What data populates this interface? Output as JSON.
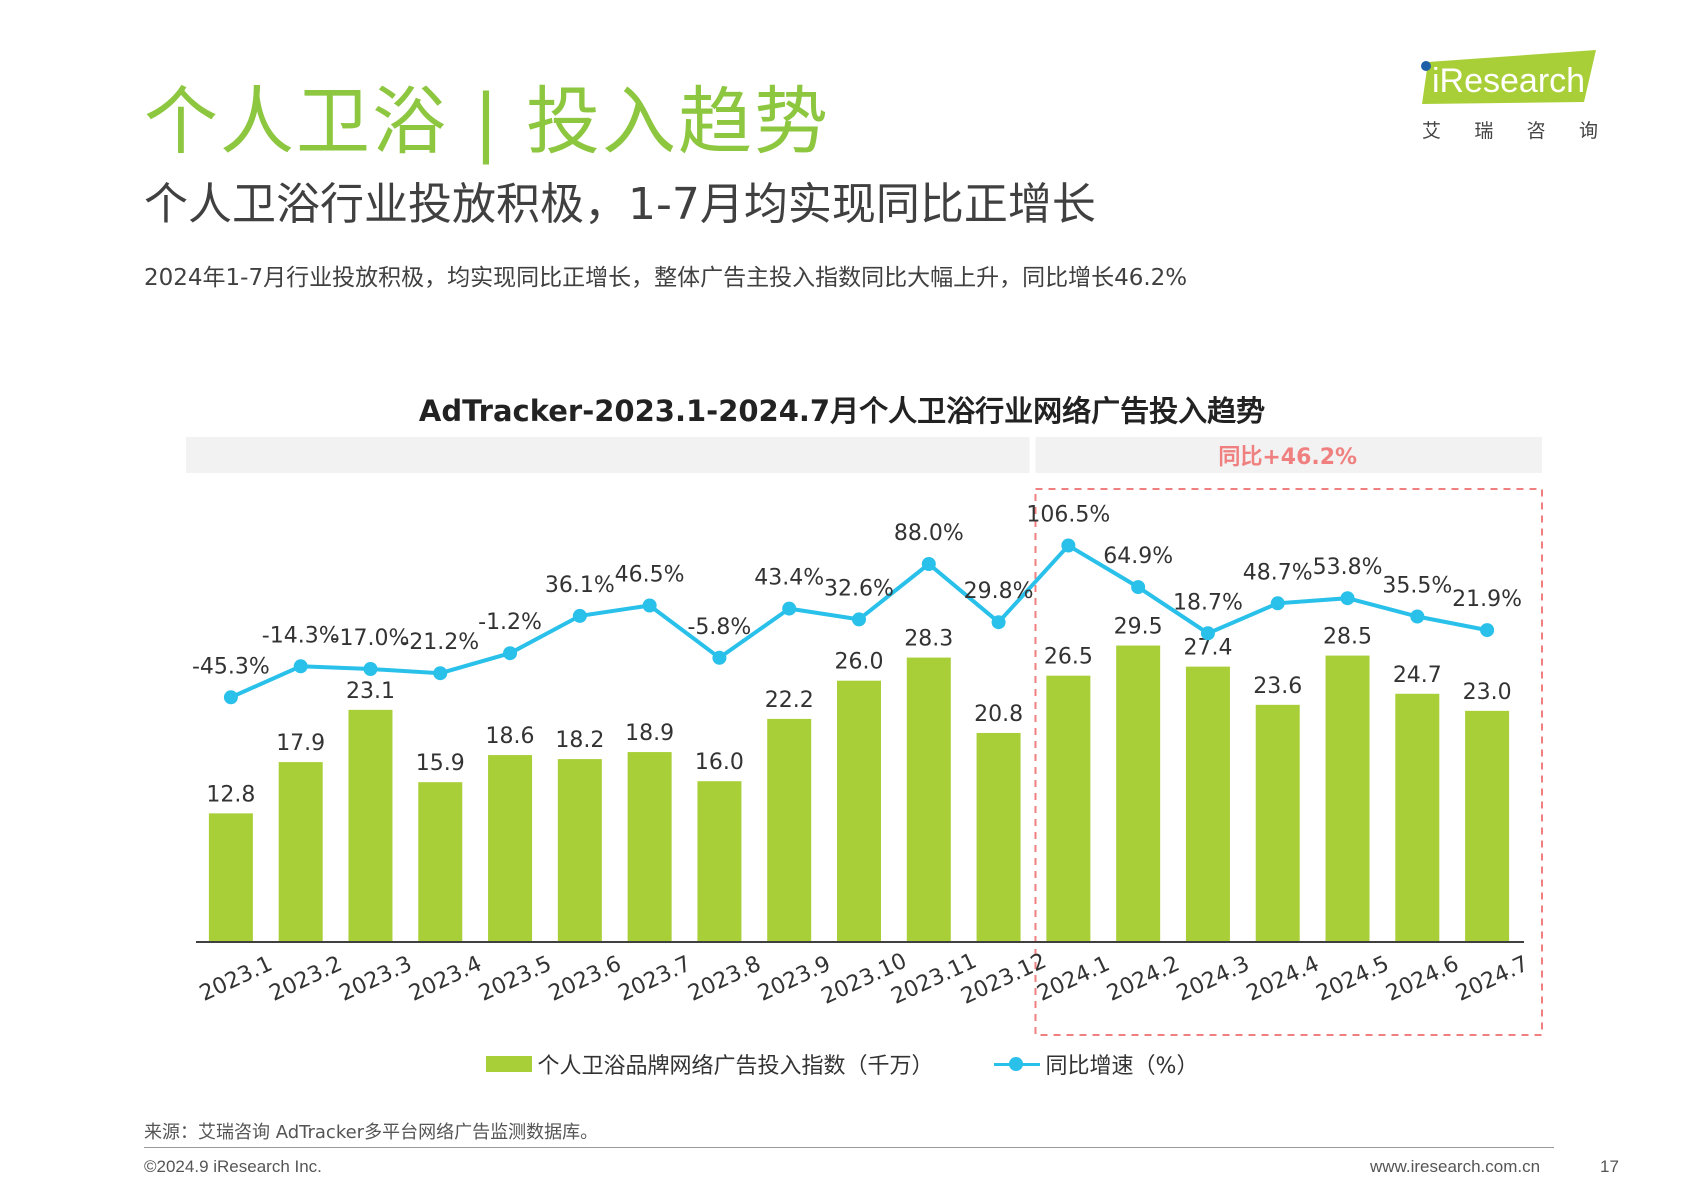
{
  "header": {
    "title": "个人卫浴 | 投入趋势",
    "subtitle": "个人卫浴行业投放积极，1-7月均实现同比正增长",
    "description": "2024年1-7月行业投放积极，均实现同比正增长，整体广告主投入指数同比大幅上升，同比增长46.2%"
  },
  "logo": {
    "word": "iResearch",
    "chars": [
      "艾",
      "瑞",
      "咨",
      "询"
    ]
  },
  "chart_data": {
    "type": "bar",
    "title": "AdTracker-2023.1-2024.7月个人卫浴行业网络广告投入趋势",
    "categories": [
      "2023.1",
      "2023.2",
      "2023.3",
      "2023.4",
      "2023.5",
      "2023.6",
      "2023.7",
      "2023.8",
      "2023.9",
      "2023.10",
      "2023.11",
      "2023.12",
      "2024.1",
      "2024.2",
      "2024.3",
      "2024.4",
      "2024.5",
      "2024.6",
      "2024.7"
    ],
    "series": [
      {
        "name": "个人卫浴品牌网络广告投入指数（千万）",
        "type": "bar",
        "color": "#a9cf38",
        "values": [
          12.8,
          17.9,
          23.1,
          15.9,
          18.6,
          18.2,
          18.9,
          16.0,
          22.2,
          26.0,
          28.3,
          20.8,
          26.5,
          29.5,
          27.4,
          23.6,
          28.5,
          24.7,
          23.0
        ]
      },
      {
        "name": "同比增速（%）",
        "type": "line",
        "color": "#29c0ea",
        "values": [
          -45.3,
          -14.3,
          -17.0,
          -21.2,
          -1.2,
          36.1,
          46.5,
          -5.8,
          43.4,
          32.6,
          88.0,
          29.8,
          106.5,
          64.9,
          18.7,
          48.7,
          53.8,
          35.5,
          21.9
        ]
      }
    ],
    "highlight": {
      "label": "同比+46.2%",
      "from_category": "2024.1",
      "to_category": "2024.7",
      "color": "#f08080"
    },
    "legend_position": "bottom",
    "grid": false
  },
  "footer": {
    "source": "来源：艾瑞咨询 AdTracker多平台网络广告监测数据库。",
    "copyright": "©2024.9 iResearch Inc.",
    "website": "www.iresearch.com.cn",
    "page": "17"
  }
}
